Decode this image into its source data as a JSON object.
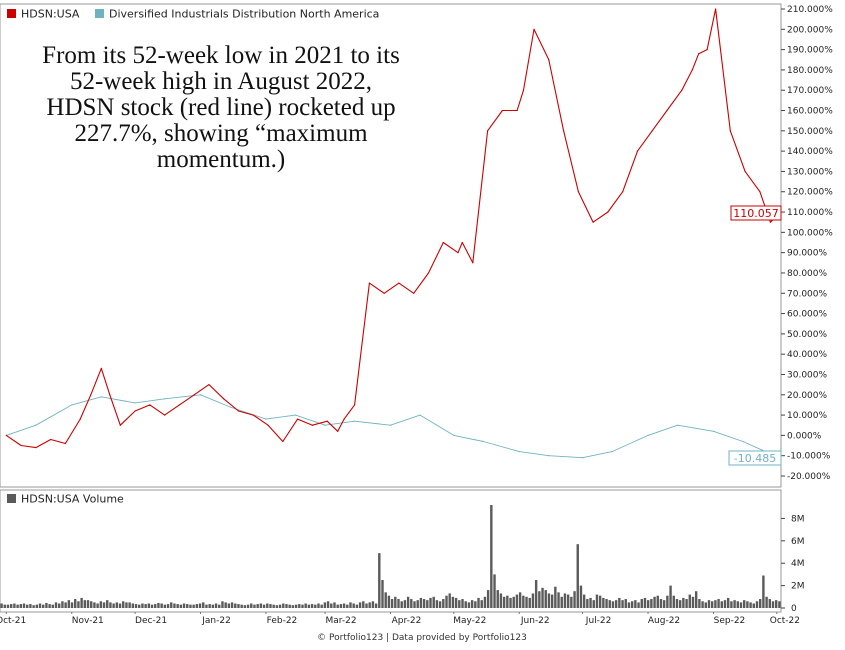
{
  "chart_data": [
    {
      "type": "line",
      "legend": [
        {
          "name": "HDSN:USA",
          "color": "#cc0000"
        },
        {
          "name": "Diversified Industrials Distribution North America",
          "color": "#6fb3c2"
        }
      ],
      "annotation": [
        "From its 52-week low in 2021 to its",
        "52-week high in August 2022,",
        "HDSN stock (red line) rocketed up",
        "227.7%, showing “maximum",
        "momentum.)"
      ],
      "y_ticks": [
        "210.000%",
        "200.000%",
        "190.000%",
        "180.000%",
        "170.000%",
        "160.000%",
        "150.000%",
        "140.000%",
        "130.000%",
        "120.000%",
        "110.000%",
        "100.000%",
        "90.000%",
        "80.000%",
        "70.000%",
        "60.000%",
        "50.000%",
        "40.000%",
        "30.000%",
        "20.000%",
        "10.000%",
        "0.000%",
        "-10.000%",
        "-20.000%"
      ],
      "ylim": [
        -20,
        210
      ],
      "x_ticks": [
        "Oct-21",
        "Nov-21",
        "Dec-21",
        "Jan-22",
        "Feb-22",
        "Mar-22",
        "Apr-22",
        "May-22",
        "Jun-22",
        "Jul-22",
        "Aug-22",
        "Sep-22",
        "Oct-22"
      ],
      "y_axis_side": "right",
      "grid": false,
      "series": [
        {
          "name": "HDSN:USA",
          "color": "#cc0000",
          "end_label": "110.057",
          "x": [
            "2021-10-01",
            "2021-10-08",
            "2021-10-15",
            "2021-10-22",
            "2021-10-29",
            "2021-11-05",
            "2021-11-10",
            "2021-11-15",
            "2021-11-19",
            "2021-11-24",
            "2021-12-01",
            "2021-12-08",
            "2021-12-15",
            "2021-12-22",
            "2021-12-29",
            "2022-01-05",
            "2022-01-12",
            "2022-01-19",
            "2022-01-26",
            "2022-02-02",
            "2022-02-09",
            "2022-02-16",
            "2022-02-23",
            "2022-03-02",
            "2022-03-07",
            "2022-03-10",
            "2022-03-15",
            "2022-03-22",
            "2022-03-29",
            "2022-04-05",
            "2022-04-12",
            "2022-04-19",
            "2022-04-26",
            "2022-05-03",
            "2022-05-05",
            "2022-05-10",
            "2022-05-17",
            "2022-05-24",
            "2022-05-31",
            "2022-06-03",
            "2022-06-08",
            "2022-06-15",
            "2022-06-22",
            "2022-06-29",
            "2022-07-06",
            "2022-07-13",
            "2022-07-20",
            "2022-07-27",
            "2022-08-03",
            "2022-08-10",
            "2022-08-17",
            "2022-08-22",
            "2022-08-25",
            "2022-08-29",
            "2022-09-02",
            "2022-09-09",
            "2022-09-16",
            "2022-09-23",
            "2022-09-28",
            "2022-10-03"
          ],
          "values": [
            0,
            -5,
            -6,
            -2,
            -4,
            8,
            20,
            33,
            20,
            5,
            12,
            15,
            10,
            15,
            20,
            25,
            18,
            12,
            10,
            5,
            -3,
            8,
            5,
            7,
            2,
            8,
            15,
            75,
            70,
            75,
            70,
            80,
            95,
            90,
            95,
            85,
            150,
            160,
            160,
            170,
            200,
            185,
            150,
            120,
            105,
            110,
            120,
            140,
            150,
            160,
            170,
            180,
            188,
            190,
            210,
            150,
            130,
            120,
            105,
            110
          ]
        },
        {
          "name": "Diversified Industrials Distribution North America",
          "color": "#6fb3c2",
          "end_label": "-10.485",
          "x": [
            "2021-10-01",
            "2021-10-15",
            "2021-11-01",
            "2021-11-15",
            "2021-12-01",
            "2021-12-15",
            "2022-01-01",
            "2022-01-15",
            "2022-02-01",
            "2022-02-15",
            "2022-03-01",
            "2022-03-15",
            "2022-04-01",
            "2022-04-15",
            "2022-05-01",
            "2022-05-15",
            "2022-06-01",
            "2022-06-15",
            "2022-07-01",
            "2022-07-15",
            "2022-08-01",
            "2022-08-15",
            "2022-09-01",
            "2022-09-15",
            "2022-10-01"
          ],
          "values": [
            0,
            5,
            15,
            19,
            16,
            18,
            20,
            14,
            8,
            10,
            5,
            7,
            5,
            10,
            0,
            -3,
            -8,
            -10,
            -11,
            -8,
            0,
            5,
            2,
            -3,
            -10.485
          ]
        }
      ]
    },
    {
      "type": "bar",
      "title": "HDSN:USA Volume",
      "color": "#5a5a5a",
      "y_ticks": [
        "8M",
        "6M",
        "4M",
        "2M",
        "0"
      ],
      "ylim": [
        0,
        9.2
      ],
      "unit": "M",
      "x_ticks": [
        "Oct-21",
        "Nov-21",
        "Dec-21",
        "Jan-22",
        "Feb-22",
        "Mar-22",
        "Apr-22",
        "May-22",
        "Jun-22",
        "Jul-22",
        "Aug-22",
        "Sep-22",
        "Oct-22"
      ],
      "values": [
        0.4,
        0.3,
        0.3,
        0.35,
        0.4,
        0.3,
        0.35,
        0.4,
        0.3,
        0.35,
        0.25,
        0.3,
        0.4,
        0.3,
        0.45,
        0.35,
        0.3,
        0.5,
        0.4,
        0.6,
        0.5,
        0.7,
        0.5,
        0.8,
        0.6,
        0.9,
        0.7,
        0.7,
        0.6,
        0.5,
        0.4,
        0.6,
        0.5,
        0.7,
        0.5,
        0.4,
        0.5,
        0.4,
        0.6,
        0.5,
        0.5,
        0.4,
        0.35,
        0.3,
        0.4,
        0.35,
        0.4,
        0.3,
        0.35,
        0.45,
        0.4,
        0.3,
        0.35,
        0.5,
        0.4,
        0.35,
        0.3,
        0.4,
        0.35,
        0.3,
        0.3,
        0.35,
        0.4,
        0.5,
        0.3,
        0.35,
        0.3,
        0.4,
        0.3,
        0.6,
        0.5,
        0.4,
        0.5,
        0.4,
        0.35,
        0.3,
        0.25,
        0.3,
        0.4,
        0.3,
        0.35,
        0.4,
        0.3,
        0.4,
        0.35,
        0.3,
        0.25,
        0.3,
        0.4,
        0.35,
        0.3,
        0.25,
        0.3,
        0.35,
        0.3,
        0.4,
        0.3,
        0.35,
        0.3,
        0.4,
        0.3,
        0.5,
        0.6,
        0.4,
        0.5,
        0.3,
        0.35,
        0.4,
        0.3,
        0.5,
        0.4,
        0.3,
        0.5,
        0.6,
        0.4,
        0.5,
        0.6,
        0.4,
        4.9,
        2.5,
        1.4,
        1.1,
        0.8,
        1.0,
        0.8,
        0.6,
        0.7,
        1.0,
        0.8,
        0.6,
        0.7,
        0.9,
        0.8,
        0.7,
        0.9,
        1.0,
        0.7,
        0.6,
        0.8,
        1.1,
        1.3,
        1.0,
        0.9,
        0.7,
        0.8,
        0.6,
        0.5,
        0.7,
        0.6,
        0.9,
        0.7,
        1.0,
        1.6,
        9.2,
        3.0,
        1.6,
        1.3,
        1.0,
        1.1,
        0.9,
        1.0,
        1.2,
        1.4,
        1.1,
        1.0,
        0.9,
        1.3,
        2.5,
        1.5,
        1.8,
        1.6,
        1.3,
        1.2,
        1.9,
        1.4,
        1.0,
        1.3,
        1.2,
        1.0,
        1.5,
        5.7,
        2.0,
        1.2,
        0.8,
        0.9,
        0.7,
        1.2,
        1.1,
        0.9,
        0.8,
        0.7,
        0.6,
        0.7,
        0.9,
        0.7,
        0.8,
        0.5,
        0.6,
        0.7,
        0.5,
        0.8,
        0.9,
        0.7,
        0.8,
        1.0,
        1.1,
        0.8,
        0.7,
        1.1,
        2.0,
        1.1,
        0.8,
        0.7,
        0.9,
        0.8,
        1.2,
        1.0,
        1.5,
        0.8,
        0.6,
        0.5,
        0.7,
        0.6,
        0.7,
        0.8,
        0.6,
        0.7,
        0.9,
        0.6,
        0.7,
        0.6,
        0.5,
        0.7,
        0.6,
        0.5,
        0.4,
        0.6,
        0.8,
        2.9,
        1.0,
        0.8,
        0.6,
        0.7,
        0.6
      ]
    }
  ],
  "footer": "© Portfolio123 | Data provided by Portfolio123"
}
